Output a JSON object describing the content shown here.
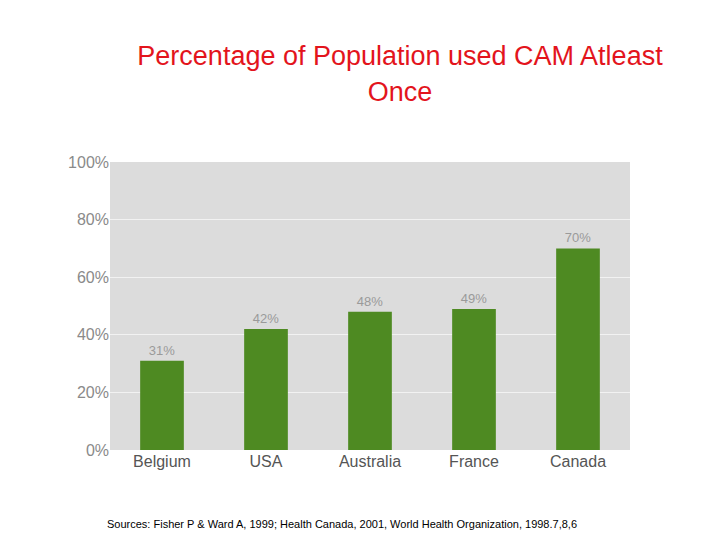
{
  "chart_data": {
    "type": "bar",
    "title": "Percentage of Population used CAM Atleast Once",
    "categories": [
      "Belgium",
      "USA",
      "Australia",
      "France",
      "Canada"
    ],
    "values": [
      31,
      42,
      48,
      49,
      70
    ],
    "value_labels": [
      "31%",
      "42%",
      "48%",
      "49%",
      "70%"
    ],
    "data_labels": true,
    "color": "#4e8a22",
    "ylim": [
      0,
      100
    ],
    "yticks": [
      {
        "value": 0,
        "label": "0%"
      },
      {
        "value": 20,
        "label": "20%"
      },
      {
        "value": 40,
        "label": "40%"
      },
      {
        "value": 60,
        "label": "60%"
      },
      {
        "value": 80,
        "label": "80%"
      },
      {
        "value": 100,
        "label": "100%"
      }
    ],
    "grid": true,
    "annotations": [
      "Sources: Fisher P & Ward A, 1999; Health Canada, 2001, World Health Organization, 1998.7,8,6"
    ]
  }
}
